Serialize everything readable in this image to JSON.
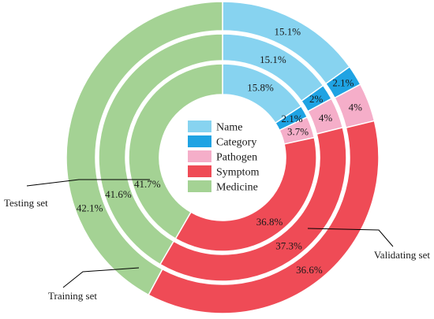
{
  "chart_data": {
    "type": "pie",
    "subtype": "nested-donut",
    "categories": [
      "Name",
      "Category",
      "Pathogen",
      "Symptom",
      "Medicine"
    ],
    "colors": [
      "#87d3f0",
      "#1fa3e3",
      "#f5aec9",
      "#ef4b56",
      "#a4d294"
    ],
    "series": [
      {
        "name": "Training set",
        "values": [
          15.8,
          2.1,
          3.7,
          36.8,
          41.7
        ]
      },
      {
        "name": "Testing set",
        "values": [
          15.1,
          2.0,
          4.0,
          37.3,
          41.6
        ]
      },
      {
        "name": "Validating set",
        "values": [
          15.1,
          2.1,
          4.0,
          36.6,
          42.1
        ]
      }
    ],
    "value_labels": [
      [
        "15.8%",
        "2.1%",
        "3.7%",
        "36.8%",
        "41.7%"
      ],
      [
        "15.1%",
        "2%",
        "4%",
        "37.3%",
        "41.6%"
      ],
      [
        "15.1%",
        "2.1%",
        "4%",
        "36.6%",
        "42.1%"
      ]
    ],
    "legend": {
      "position": "center",
      "entries": [
        "Name",
        "Category",
        "Pathogen",
        "Symptom",
        "Medicine"
      ]
    },
    "callouts": [
      "Training set",
      "Testing set",
      "Validating set"
    ]
  }
}
